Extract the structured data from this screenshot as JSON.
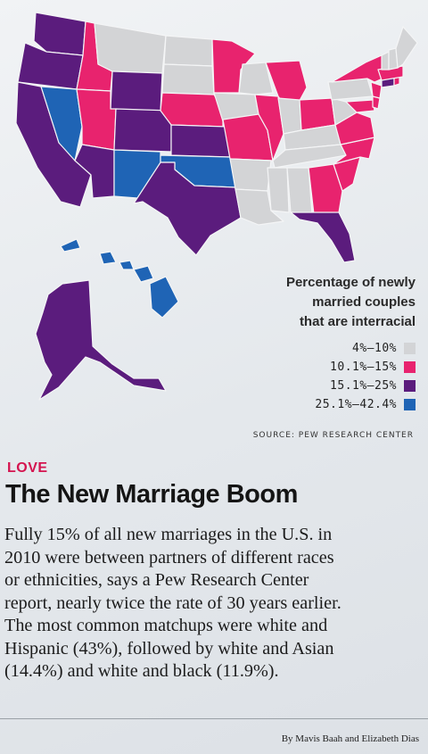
{
  "legend": {
    "title_lines": [
      "Percentage of newly",
      "married couples",
      "that are interracial"
    ],
    "items": [
      {
        "label": "4%–10%",
        "color": "#d3d4d6"
      },
      {
        "label": "10.1%–15%",
        "color": "#e8236e"
      },
      {
        "label": "15.1%–25%",
        "color": "#5b1c7d"
      },
      {
        "label": "25.1%–42.4%",
        "color": "#1f64b5"
      }
    ]
  },
  "source": "SOURCE: PEW RESEARCH CENTER",
  "article": {
    "kicker": "LOVE",
    "headline": "The New Marriage Boom",
    "body_lines": [
      "Fully 15% of all new marriages in the U.S. in",
      "2010 were between partners of different races",
      "or ethnicities, says a Pew Research Center",
      "report, nearly twice the rate of 30 years earlier.",
      "The most common matchups were white and",
      "Hispanic (43%), followed by white and Asian",
      "(14.4%) and white and black (11.9%)."
    ],
    "byline": "By Mavis Baah and Elizabeth Dias"
  },
  "map": {
    "region_categories": {
      "washington": 2,
      "oregon": 2,
      "california": 2,
      "idaho": 1,
      "nevada": 3,
      "montana": 0,
      "wyoming": 2,
      "utah": 1,
      "arizona": 2,
      "colorado": 2,
      "new-mexico": 3,
      "north-dakota": 0,
      "south-dakota": 0,
      "nebraska": 1,
      "kansas": 2,
      "oklahoma": 3,
      "texas": 2,
      "minnesota": 1,
      "iowa": 0,
      "missouri": 1,
      "arkansas": 0,
      "louisiana": 0,
      "wisconsin": 0,
      "illinois": 1,
      "michigan": 1,
      "indiana": 0,
      "ohio": 1,
      "kentucky": 0,
      "tennessee": 0,
      "mississippi": 0,
      "alabama": 0,
      "georgia": 1,
      "florida": 2,
      "south-carolina": 1,
      "north-carolina": 1,
      "virginia": 1,
      "west-virginia": 0,
      "pennsylvania": 0,
      "new-york": 1,
      "maryland": 1,
      "delaware": 1,
      "new-jersey": 1,
      "connecticut": 2,
      "rhode-island": 1,
      "massachusetts": 1,
      "vermont": 0,
      "new-hampshire": 0,
      "maine": 0,
      "alaska": 2,
      "hawaii": 3
    }
  }
}
